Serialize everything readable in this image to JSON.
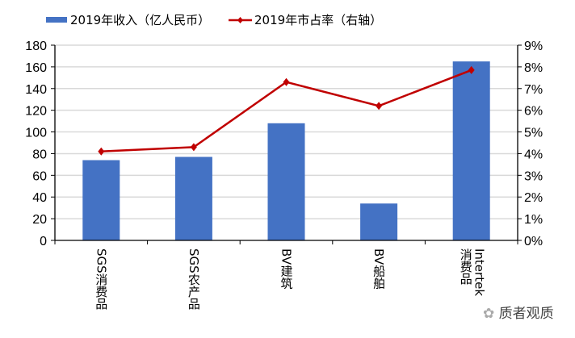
{
  "chart_data": {
    "type": "bar+line",
    "categories": [
      "SGS消费品",
      "SGS农产品",
      "BV建筑",
      "BV船舶",
      "Intertek消费品"
    ],
    "series": [
      {
        "name": "2019年收入（亿人民币）",
        "type": "bar",
        "axis": "left",
        "color": "#4472C4",
        "values": [
          74,
          77,
          108,
          34,
          165
        ]
      },
      {
        "name": "2019年市占率（右轴）",
        "type": "line",
        "axis": "right",
        "color": "#C00000",
        "marker": "diamond",
        "values": [
          4.1,
          4.3,
          7.3,
          6.2,
          7.85
        ]
      }
    ],
    "left_axis": {
      "ylim": [
        0,
        180
      ],
      "ticks": [
        "0",
        "20",
        "40",
        "60",
        "80",
        "100",
        "120",
        "140",
        "160",
        "180"
      ]
    },
    "right_axis": {
      "ylim": [
        0,
        9
      ],
      "ticks": [
        "0%",
        "1%",
        "2%",
        "3%",
        "4%",
        "5%",
        "6%",
        "7%",
        "8%",
        "9%"
      ]
    },
    "grid": true,
    "legend": "top"
  },
  "watermark": "质者观质"
}
